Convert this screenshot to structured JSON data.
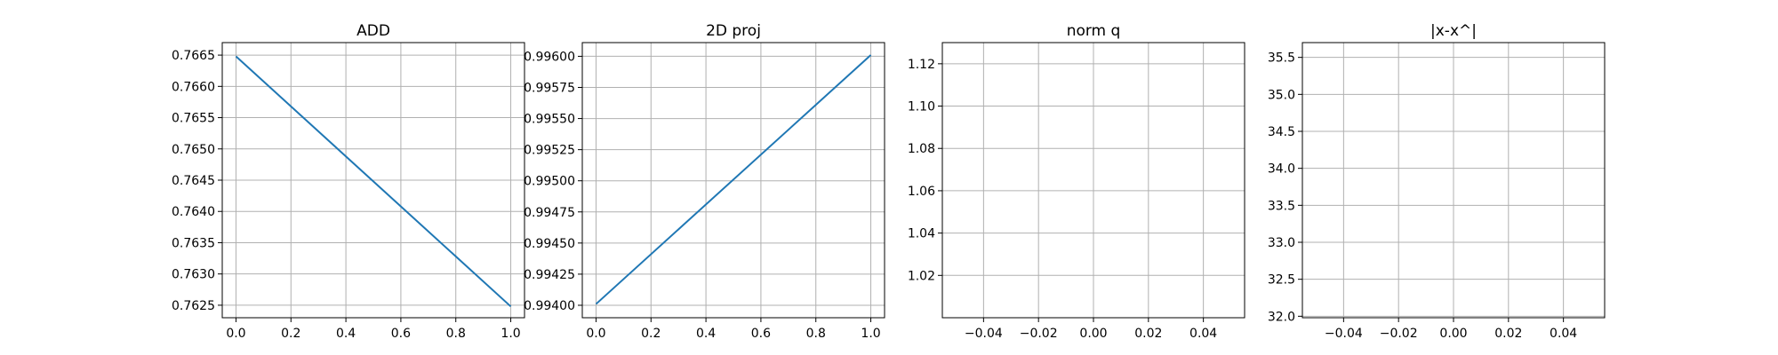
{
  "chart_data": [
    {
      "type": "line",
      "title": "ADD",
      "xlim": [
        -0.05,
        1.05
      ],
      "ylim": [
        0.7623,
        0.7667
      ],
      "xticks": [
        0.0,
        0.2,
        0.4,
        0.6,
        0.8,
        1.0
      ],
      "xtick_labels": [
        "0.0",
        "0.2",
        "0.4",
        "0.6",
        "0.8",
        "1.0"
      ],
      "yticks": [
        0.7625,
        0.763,
        0.7635,
        0.764,
        0.7645,
        0.765,
        0.7655,
        0.766,
        0.7665
      ],
      "ytick_labels": [
        "0.7625",
        "0.7630",
        "0.7635",
        "0.7640",
        "0.7645",
        "0.7650",
        "0.7655",
        "0.7660",
        "0.7665"
      ],
      "grid": true,
      "series": [
        {
          "x": [
            0,
            1
          ],
          "y": [
            0.76648,
            0.76248
          ],
          "color": "#1f77b4"
        }
      ]
    },
    {
      "type": "line",
      "title": "2D proj",
      "xlim": [
        -0.05,
        1.05
      ],
      "ylim": [
        0.9939,
        0.99611
      ],
      "xticks": [
        0.0,
        0.2,
        0.4,
        0.6,
        0.8,
        1.0
      ],
      "xtick_labels": [
        "0.0",
        "0.2",
        "0.4",
        "0.6",
        "0.8",
        "1.0"
      ],
      "yticks": [
        0.994,
        0.99425,
        0.9945,
        0.99475,
        0.995,
        0.99525,
        0.9955,
        0.99575,
        0.996
      ],
      "ytick_labels": [
        "0.99400",
        "0.99425",
        "0.99450",
        "0.99475",
        "0.99500",
        "0.99525",
        "0.99550",
        "0.99575",
        "0.99600"
      ],
      "grid": true,
      "series": [
        {
          "x": [
            0,
            1
          ],
          "y": [
            0.99401,
            0.99601
          ],
          "color": "#1f77b4"
        }
      ]
    },
    {
      "type": "line",
      "title": "norm q",
      "xlim": [
        -0.055,
        0.055
      ],
      "ylim": [
        1.0,
        1.13
      ],
      "xticks": [
        -0.04,
        -0.02,
        0.0,
        0.02,
        0.04
      ],
      "xtick_labels": [
        "−0.04",
        "−0.02",
        "0.00",
        "0.02",
        "0.04"
      ],
      "yticks": [
        1.02,
        1.04,
        1.06,
        1.08,
        1.1,
        1.12
      ],
      "ytick_labels": [
        "1.02",
        "1.04",
        "1.06",
        "1.08",
        "1.10",
        "1.12"
      ],
      "grid": true,
      "series": []
    },
    {
      "type": "line",
      "title": "|x-x^|",
      "xlim": [
        -0.055,
        0.055
      ],
      "ylim": [
        31.98,
        35.7
      ],
      "xticks": [
        -0.04,
        -0.02,
        0.0,
        0.02,
        0.04
      ],
      "xtick_labels": [
        "−0.04",
        "−0.02",
        "0.00",
        "0.02",
        "0.04"
      ],
      "yticks": [
        32.0,
        32.5,
        33.0,
        33.5,
        34.0,
        34.5,
        35.0,
        35.5
      ],
      "ytick_labels": [
        "32.0",
        "32.5",
        "33.0",
        "33.5",
        "34.0",
        "34.5",
        "35.0",
        "35.5"
      ],
      "grid": true,
      "series": []
    }
  ]
}
